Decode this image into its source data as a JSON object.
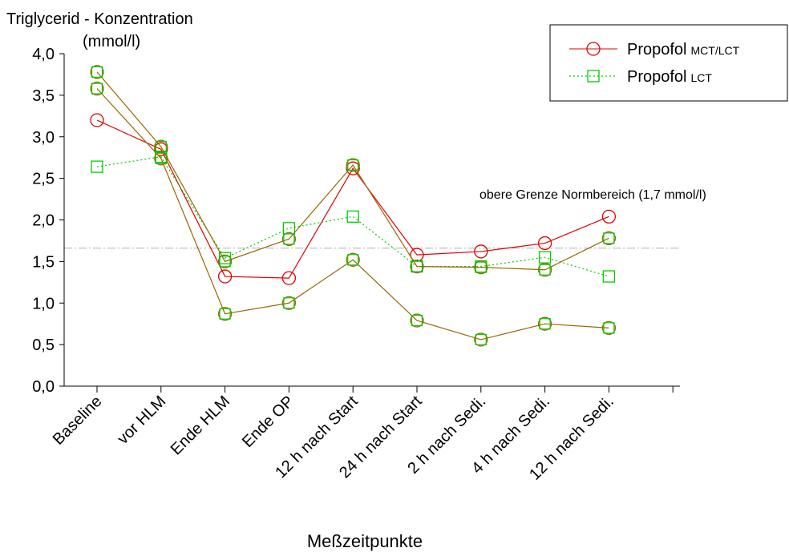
{
  "chart_data": {
    "type": "line",
    "title": "",
    "ylabel_line1": "Triglycerid - Konzentration",
    "ylabel_line2": "(mmol/l)",
    "xlabel": "Meßzeitpunkte",
    "ylim": [
      0,
      4
    ],
    "yticks": [
      "0,0",
      "0,5",
      "1,0",
      "1,5",
      "2,0",
      "2,5",
      "3,0",
      "3,5",
      "4,0"
    ],
    "categories": [
      "Baseline",
      "vor HLM",
      "Ende HLM",
      "Ende OP",
      "12 h nach Start",
      "24 h nach Start",
      "2 h nach Sedi.",
      "4 h nach Sedi.",
      "12 h nach Sedi."
    ],
    "reference_line": {
      "value": 1.65,
      "label": "obere Grenze Normbereich (1,7 mmol/l)",
      "color": "#b0b0b0"
    },
    "legend": {
      "position": "top-right",
      "entries": [
        {
          "main": "Propofol",
          "sub": "MCT/LCT",
          "color": "#e00000",
          "marker": "circle",
          "line": "solid"
        },
        {
          "main": "Propofol",
          "sub": "LCT",
          "color": "#00cc00",
          "marker": "square",
          "line": "dotted"
        }
      ]
    },
    "series": [
      {
        "color": "#e00000",
        "marker": "circle",
        "dash": "",
        "values": [
          3.2,
          2.85,
          1.32,
          1.3,
          2.62,
          1.58,
          1.62,
          1.72,
          2.04
        ]
      },
      {
        "color": "#00cc00",
        "marker": "square",
        "dash": "2,3",
        "values": [
          2.64,
          2.76,
          1.54,
          1.9,
          2.04,
          1.44,
          1.44,
          1.55,
          1.32
        ]
      },
      {
        "color": "#996600",
        "marker": "circle",
        "dash": "",
        "overlay": "#00cc00",
        "values": [
          3.78,
          2.88,
          1.5,
          1.77,
          2.66,
          1.44,
          1.43,
          1.4,
          1.78
        ]
      },
      {
        "color": "#996600",
        "marker": "circle",
        "dash": "",
        "overlay": "#00cc00",
        "values": [
          3.58,
          2.74,
          0.87,
          1.0,
          1.52,
          0.79,
          0.56,
          0.75,
          0.7
        ]
      }
    ]
  }
}
